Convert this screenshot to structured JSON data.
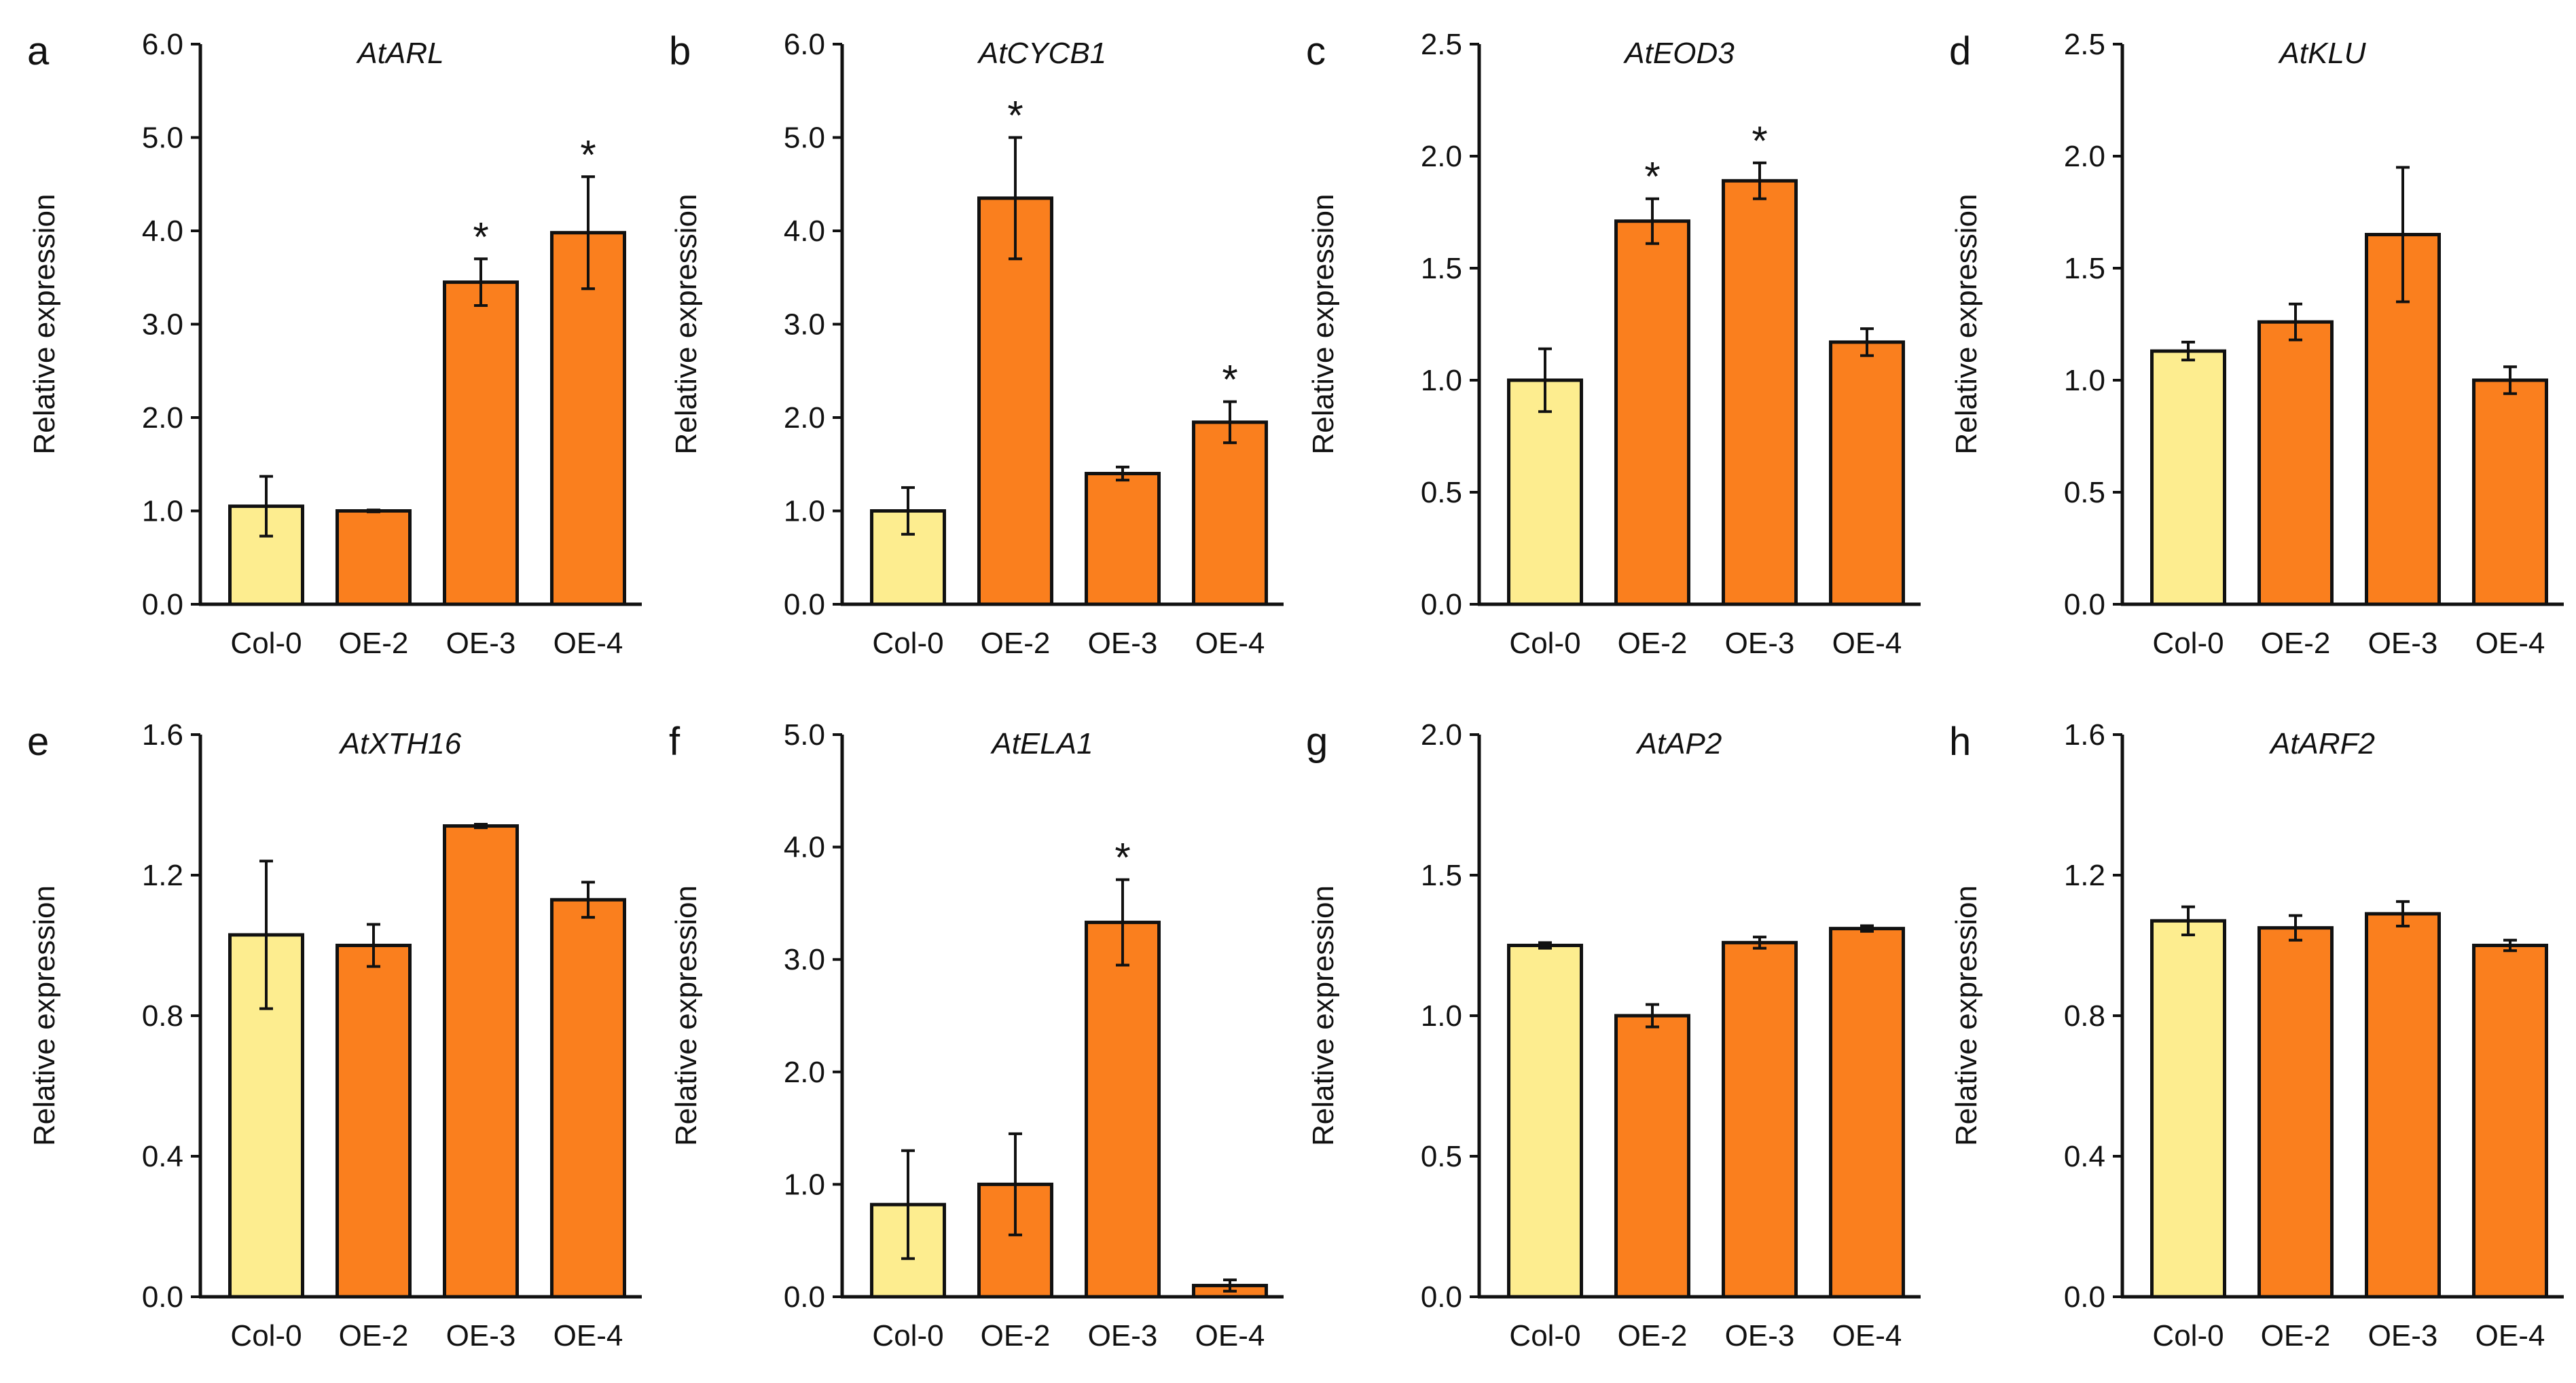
{
  "chart_data": [
    {
      "panel": "a",
      "type": "bar",
      "title": "AtARL",
      "xlabel": "",
      "ylabel": "Relative expression",
      "categories": [
        "Col-0",
        "OE-2",
        "OE-3",
        "OE-4"
      ],
      "values": [
        1.05,
        1.0,
        3.45,
        3.98
      ],
      "errors": [
        0.32,
        0.01,
        0.25,
        0.6
      ],
      "significant": [
        "",
        "",
        "*",
        "*"
      ],
      "ylim": [
        0,
        6
      ],
      "yticks": [
        "0.0",
        "1.0",
        "2.0",
        "3.0",
        "4.0",
        "5.0",
        "6.0"
      ],
      "colors": [
        "#FDED8F",
        "#FA7F1E",
        "#FA7F1E",
        "#FA7F1E"
      ]
    },
    {
      "panel": "b",
      "type": "bar",
      "title": "AtCYCB1",
      "xlabel": "",
      "ylabel": "Relative expression",
      "categories": [
        "Col-0",
        "OE-2",
        "OE-3",
        "OE-4"
      ],
      "values": [
        1.0,
        4.35,
        1.4,
        1.95
      ],
      "errors": [
        0.25,
        0.65,
        0.07,
        0.22
      ],
      "significant": [
        "",
        "*",
        "",
        "*"
      ],
      "ylim": [
        0,
        6
      ],
      "yticks": [
        "0.0",
        "1.0",
        "2.0",
        "3.0",
        "4.0",
        "5.0",
        "6.0"
      ],
      "colors": [
        "#FDED8F",
        "#FA7F1E",
        "#FA7F1E",
        "#FA7F1E"
      ]
    },
    {
      "panel": "c",
      "type": "bar",
      "title": "AtEOD3",
      "xlabel": "",
      "ylabel": "Relative expression",
      "categories": [
        "Col-0",
        "OE-2",
        "OE-3",
        "OE-4"
      ],
      "values": [
        1.0,
        1.71,
        1.89,
        1.17
      ],
      "errors": [
        0.14,
        0.1,
        0.08,
        0.06
      ],
      "significant": [
        "",
        "*",
        "*",
        ""
      ],
      "ylim": [
        0,
        2.5
      ],
      "yticks": [
        "0.0",
        "0.5",
        "1.0",
        "1.5",
        "2.0",
        "2.5"
      ],
      "colors": [
        "#FDED8F",
        "#FA7F1E",
        "#FA7F1E",
        "#FA7F1E"
      ]
    },
    {
      "panel": "d",
      "type": "bar",
      "title": "AtKLU",
      "xlabel": "",
      "ylabel": "Relative expression",
      "categories": [
        "Col-0",
        "OE-2",
        "OE-3",
        "OE-4"
      ],
      "values": [
        1.13,
        1.26,
        1.65,
        1.0
      ],
      "errors": [
        0.04,
        0.08,
        0.3,
        0.06
      ],
      "significant": [
        "",
        "",
        "",
        ""
      ],
      "ylim": [
        0,
        2.5
      ],
      "yticks": [
        "0.0",
        "0.5",
        "1.0",
        "1.5",
        "2.0",
        "2.5"
      ],
      "colors": [
        "#FDED8F",
        "#FA7F1E",
        "#FA7F1E",
        "#FA7F1E"
      ]
    },
    {
      "panel": "e",
      "type": "bar",
      "title": "AtXTH16",
      "xlabel": "",
      "ylabel": "Relative expression",
      "categories": [
        "Col-0",
        "OE-2",
        "OE-3",
        "OE-4"
      ],
      "values": [
        1.03,
        1.0,
        1.34,
        1.13
      ],
      "errors": [
        0.21,
        0.06,
        0.005,
        0.05
      ],
      "significant": [
        "",
        "",
        "",
        ""
      ],
      "ylim": [
        0,
        1.6
      ],
      "yticks": [
        "0.0",
        "0.4",
        "0.8",
        "1.2",
        "1.6"
      ],
      "colors": [
        "#FDED8F",
        "#FA7F1E",
        "#FA7F1E",
        "#FA7F1E"
      ]
    },
    {
      "panel": "f",
      "type": "bar",
      "title": "AtELA1",
      "xlabel": "",
      "ylabel": "Relative expression",
      "categories": [
        "Col-0",
        "OE-2",
        "OE-3",
        "OE-4"
      ],
      "values": [
        0.82,
        1.0,
        3.33,
        0.1
      ],
      "errors": [
        0.48,
        0.45,
        0.38,
        0.05
      ],
      "significant": [
        "",
        "",
        "*",
        ""
      ],
      "ylim": [
        0,
        5
      ],
      "yticks": [
        "0.0",
        "1.0",
        "2.0",
        "3.0",
        "4.0",
        "5.0"
      ],
      "colors": [
        "#FDED8F",
        "#FA7F1E",
        "#FA7F1E",
        "#FA7F1E"
      ]
    },
    {
      "panel": "g",
      "type": "bar",
      "title": "AtAP2",
      "xlabel": "",
      "ylabel": "Relative expression",
      "categories": [
        "Col-0",
        "OE-2",
        "OE-3",
        "OE-4"
      ],
      "values": [
        1.25,
        1.0,
        1.26,
        1.31
      ],
      "errors": [
        0.01,
        0.04,
        0.02,
        0.01
      ],
      "significant": [
        "",
        "",
        "",
        ""
      ],
      "ylim": [
        0,
        2.0
      ],
      "yticks": [
        "0.0",
        "0.5",
        "1.0",
        "1.5",
        "2.0"
      ],
      "colors": [
        "#FDED8F",
        "#FA7F1E",
        "#FA7F1E",
        "#FA7F1E"
      ]
    },
    {
      "panel": "h",
      "type": "bar",
      "title": "AtARF2",
      "xlabel": "",
      "ylabel": "Relative expression",
      "categories": [
        "Col-0",
        "OE-2",
        "OE-3",
        "OE-4"
      ],
      "values": [
        1.07,
        1.05,
        1.09,
        1.0
      ],
      "errors": [
        0.04,
        0.035,
        0.035,
        0.015
      ],
      "significant": [
        "",
        "",
        "",
        ""
      ],
      "ylim": [
        0,
        1.6
      ],
      "yticks": [
        "0.0",
        "0.4",
        "0.8",
        "1.2",
        "1.6"
      ],
      "colors": [
        "#FDED8F",
        "#FA7F1E",
        "#FA7F1E",
        "#FA7F1E"
      ]
    }
  ]
}
